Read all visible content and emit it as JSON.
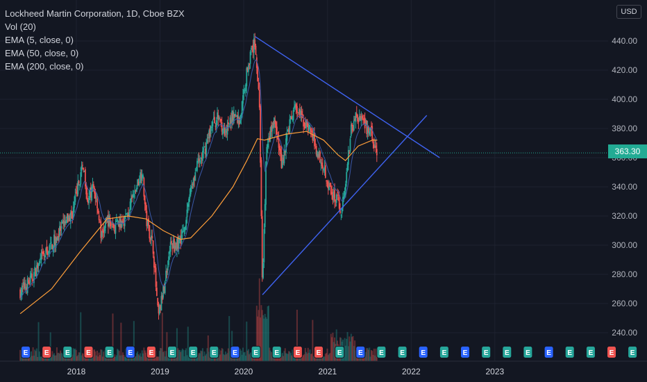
{
  "legend": {
    "title": "Lockheed Martin Corporation, 1D, Cboe BZX",
    "lines": [
      "Vol (20)",
      "EMA (5, close, 0)",
      "EMA (50, close, 0)",
      "EMA (200, close, 0)"
    ]
  },
  "currency": "USD",
  "last_price": "363.30",
  "colors": {
    "background": "#131722",
    "up": "#26a69a",
    "down": "#ef5350",
    "ema200": "#ff9f3a",
    "ema50": "#3a58a8",
    "trendline": "#3f63f2",
    "price_line": "#22ab94",
    "earnings_green": "#26a69a",
    "earnings_red": "#ef5350"
  },
  "chart_data": {
    "type": "candlestick",
    "x_ticks": [
      "2018",
      "2019",
      "2020",
      "2021",
      "2022",
      "2023"
    ],
    "y_ticks": [
      "240.00",
      "260.00",
      "280.00",
      "300.00",
      "320.00",
      "340.00",
      "360.00",
      "380.00",
      "400.00",
      "420.00",
      "440.00"
    ],
    "ylim": [
      224,
      452
    ],
    "price_series": [
      [
        "2017-05-01",
        268
      ],
      [
        "2017-06-15",
        276
      ],
      [
        "2017-08-01",
        290
      ],
      [
        "2017-09-15",
        300
      ],
      [
        "2017-11-01",
        312
      ],
      [
        "2017-12-15",
        322
      ],
      [
        "2018-01-15",
        345
      ],
      [
        "2018-02-01",
        355
      ],
      [
        "2018-02-20",
        330
      ],
      [
        "2018-03-15",
        340
      ],
      [
        "2018-04-01",
        330
      ],
      [
        "2018-04-20",
        305
      ],
      [
        "2018-05-15",
        318
      ],
      [
        "2018-06-15",
        312
      ],
      [
        "2018-07-15",
        315
      ],
      [
        "2018-08-15",
        322
      ],
      [
        "2018-09-20",
        340
      ],
      [
        "2018-10-15",
        352
      ],
      [
        "2018-11-01",
        318
      ],
      [
        "2018-12-01",
        300
      ],
      [
        "2018-12-24",
        250
      ],
      [
        "2019-01-15",
        268
      ],
      [
        "2019-02-15",
        300
      ],
      [
        "2019-03-15",
        300
      ],
      [
        "2019-04-15",
        310
      ],
      [
        "2019-05-15",
        340
      ],
      [
        "2019-06-15",
        355
      ],
      [
        "2019-07-15",
        365
      ],
      [
        "2019-08-15",
        383
      ],
      [
        "2019-09-15",
        388
      ],
      [
        "2019-10-15",
        375
      ],
      [
        "2019-11-15",
        390
      ],
      [
        "2019-12-15",
        385
      ],
      [
        "2020-01-20",
        425
      ],
      [
        "2020-02-20",
        440
      ],
      [
        "2020-03-10",
        395
      ],
      [
        "2020-03-23",
        270
      ],
      [
        "2020-04-10",
        370
      ],
      [
        "2020-05-15",
        385
      ],
      [
        "2020-06-15",
        355
      ],
      [
        "2020-07-15",
        380
      ],
      [
        "2020-08-15",
        395
      ],
      [
        "2020-09-15",
        385
      ],
      [
        "2020-10-15",
        380
      ],
      [
        "2020-11-15",
        365
      ],
      [
        "2020-12-15",
        355
      ],
      [
        "2021-01-15",
        335
      ],
      [
        "2021-02-15",
        332
      ],
      [
        "2021-02-28",
        322
      ],
      [
        "2021-03-20",
        342
      ],
      [
        "2021-04-15",
        380
      ],
      [
        "2021-05-10",
        390
      ],
      [
        "2021-06-15",
        380
      ],
      [
        "2021-07-10",
        378
      ],
      [
        "2021-07-25",
        365
      ],
      [
        "2021-08-06",
        363.3
      ]
    ],
    "ema200_series": [
      [
        "2017-05-01",
        253
      ],
      [
        "2017-09-15",
        270
      ],
      [
        "2018-01-15",
        295
      ],
      [
        "2018-05-15",
        318
      ],
      [
        "2018-08-15",
        320
      ],
      [
        "2018-11-01",
        318
      ],
      [
        "2019-01-15",
        310
      ],
      [
        "2019-04-01",
        304
      ],
      [
        "2019-05-15",
        305
      ],
      [
        "2019-08-15",
        320
      ],
      [
        "2019-11-15",
        340
      ],
      [
        "2020-01-15",
        358
      ],
      [
        "2020-03-01",
        373
      ],
      [
        "2020-04-01",
        372
      ],
      [
        "2020-07-01",
        376
      ],
      [
        "2020-10-01",
        378
      ],
      [
        "2020-12-15",
        372
      ],
      [
        "2021-02-15",
        362
      ],
      [
        "2021-03-20",
        358
      ],
      [
        "2021-05-15",
        368
      ],
      [
        "2021-07-15",
        372
      ],
      [
        "2021-08-06",
        372
      ]
    ],
    "trendlines": [
      {
        "from": [
          "2020-02-20",
          443
        ],
        "to": [
          "2022-05-05",
          360
        ]
      },
      {
        "from": [
          "2020-03-23",
          266
        ],
        "to": [
          "2022-03-10",
          389
        ]
      }
    ],
    "earnings_markers": {
      "start": "2017-05-25",
      "label": "E",
      "kinds": [
        "blue",
        "red",
        "green",
        "red",
        "green",
        "blue",
        "red",
        "green",
        "green",
        "green",
        "blue",
        "green",
        "green",
        "red",
        "red",
        "green",
        "blue",
        "green",
        "green",
        "blue",
        "green",
        "blue",
        "green",
        "green",
        "green",
        "blue",
        "green",
        "green",
        "red",
        "green",
        "red",
        "green",
        "green",
        "red",
        "red",
        "outline"
      ]
    }
  }
}
